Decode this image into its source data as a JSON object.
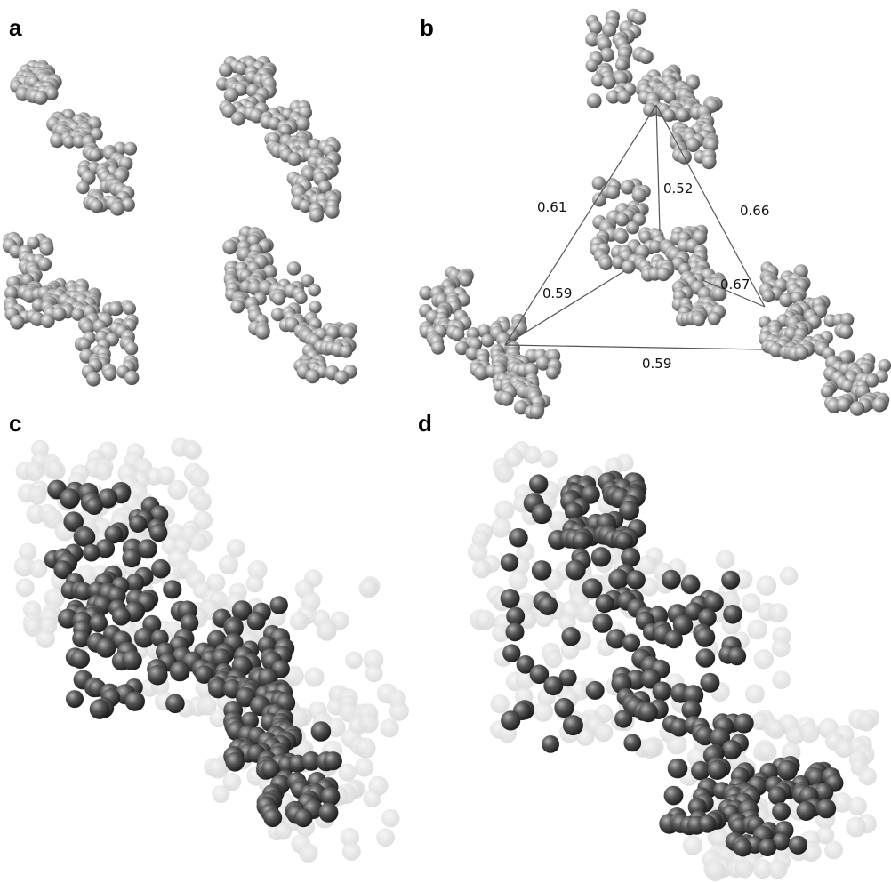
{
  "panels": {
    "a": {
      "label": "a"
    },
    "b": {
      "label": "b"
    },
    "c": {
      "label": "c"
    },
    "d": {
      "label": "d"
    }
  },
  "network_edges": [
    {
      "label": "0.61"
    },
    {
      "label": "0.52"
    },
    {
      "label": "0.66"
    },
    {
      "label": "0.59"
    },
    {
      "label": "0.67"
    },
    {
      "label": "0.59"
    }
  ],
  "colors": {
    "bead_light": "#9a9a9a",
    "bead_dark": "#474747",
    "envelope": "#e2e2e2",
    "edge_line": "#555555"
  }
}
